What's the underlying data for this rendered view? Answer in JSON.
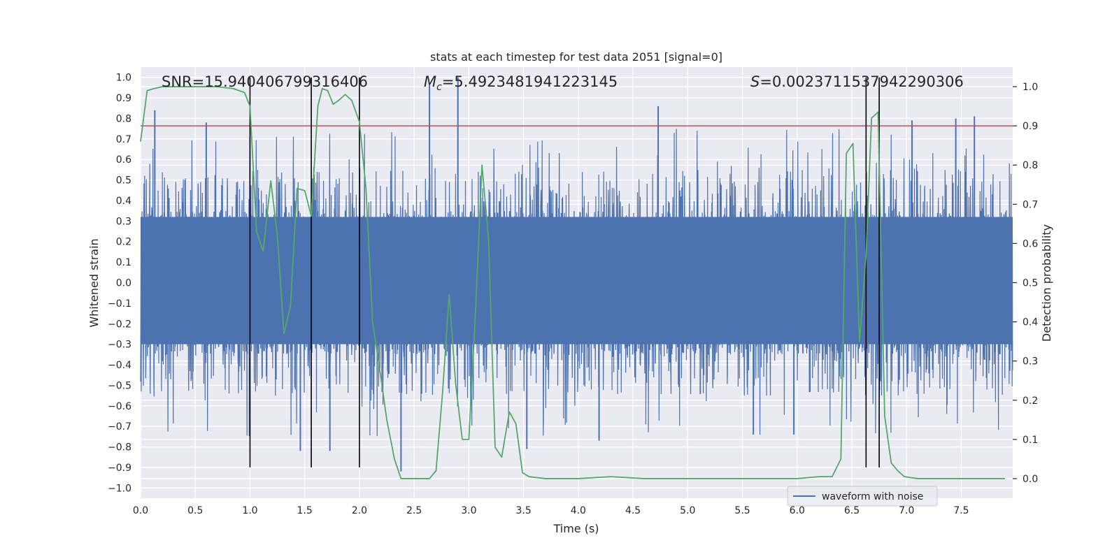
{
  "chart_data": {
    "type": "line",
    "title": "stats at each timestep for test data 2051 [signal=0]",
    "xlabel": "Time (s)",
    "ylabel": "Whitened strain",
    "ylabel_right": "Detection probability",
    "xlim": [
      0.0,
      7.97
    ],
    "ylim": [
      -1.05,
      1.05
    ],
    "ylim_right": [
      -0.05,
      1.05
    ],
    "x_ticks": [
      "0.0",
      "0.5",
      "1.0",
      "1.5",
      "2.0",
      "2.5",
      "3.0",
      "3.5",
      "4.0",
      "4.5",
      "5.0",
      "5.5",
      "6.0",
      "6.5",
      "7.0",
      "7.5"
    ],
    "y_ticks": [
      "1.0",
      "0.9",
      "0.8",
      "0.7",
      "0.6",
      "0.5",
      "0.4",
      "0.3",
      "0.2",
      "0.1",
      "0.0",
      "-0.1",
      "-0.2",
      "-0.3",
      "-0.4",
      "-0.5",
      "-0.6",
      "-0.7",
      "-0.8",
      "-0.9",
      "-1.0"
    ],
    "y_ticks_right": [
      "1.0",
      "0.9",
      "0.8",
      "0.7",
      "0.6",
      "0.5",
      "0.4",
      "0.3",
      "0.2",
      "0.1",
      "0.0"
    ],
    "annotations": {
      "snr": "SNR=15.940406799316406",
      "mc_symbol": "M",
      "mc_sub": "c",
      "mc_value": "=5.4923481941223145",
      "s_symbol": "S",
      "s_value": "=0.0023711537942290306"
    },
    "legend": {
      "label": "waveform with noise",
      "position": "lower-right"
    },
    "threshold": {
      "value": 0.9,
      "axis": "right",
      "color": "#c44e52"
    },
    "vlines": [
      1.0,
      1.56,
      2.0,
      6.63,
      6.75
    ],
    "waveform": {
      "name": "waveform with noise",
      "color": "#4c72b0",
      "sample_rate_hz": 512,
      "envelope_upper": 0.32,
      "envelope_lower": -0.3,
      "spikes": [
        {
          "t": 0.13,
          "v": 0.84
        },
        {
          "t": 0.6,
          "v": 0.78
        },
        {
          "t": 2.64,
          "v": 0.97
        },
        {
          "t": 2.9,
          "v": 1.0
        },
        {
          "t": 4.73,
          "v": 0.86
        },
        {
          "t": 7.05,
          "v": 0.79
        },
        {
          "t": 7.45,
          "v": 0.8
        },
        {
          "t": 7.62,
          "v": 0.81
        },
        {
          "t": 1.46,
          "v": -0.82
        },
        {
          "t": 1.73,
          "v": -0.82
        },
        {
          "t": 2.38,
          "v": -0.92
        },
        {
          "t": 3.53,
          "v": -0.81
        },
        {
          "t": 4.19,
          "v": -0.77
        },
        {
          "t": 5.6,
          "v": -0.74
        },
        {
          "t": 5.97,
          "v": -0.74
        }
      ]
    },
    "probability": {
      "name": "Detection probability",
      "color": "#55a868",
      "x": [
        0.0,
        0.06,
        0.12,
        0.2,
        0.3,
        0.5,
        0.7,
        0.85,
        0.95,
        1.0,
        1.06,
        1.12,
        1.19,
        1.25,
        1.31,
        1.37,
        1.43,
        1.5,
        1.56,
        1.62,
        1.66,
        1.71,
        1.76,
        1.81,
        1.87,
        1.93,
        2.0,
        2.06,
        2.12,
        2.2,
        2.25,
        2.32,
        2.38,
        2.44,
        2.5,
        2.64,
        2.7,
        2.76,
        2.82,
        2.88,
        2.94,
        3.0,
        3.06,
        3.12,
        3.18,
        3.24,
        3.3,
        3.37,
        3.43,
        3.49,
        3.55,
        3.7,
        4.0,
        4.3,
        4.6,
        4.9,
        5.2,
        5.6,
        6.0,
        6.2,
        6.32,
        6.4,
        6.45,
        6.51,
        6.57,
        6.63,
        6.68,
        6.74,
        6.8,
        6.86,
        6.92,
        6.98,
        7.1,
        7.3,
        7.6,
        7.9
      ],
      "y": [
        0.86,
        0.99,
        0.995,
        1.0,
        1.0,
        1.0,
        1.0,
        0.995,
        0.985,
        0.95,
        0.63,
        0.58,
        0.76,
        0.62,
        0.37,
        0.44,
        0.74,
        0.735,
        0.67,
        0.95,
        0.995,
        0.99,
        0.955,
        0.965,
        0.98,
        0.965,
        0.91,
        0.74,
        0.4,
        0.25,
        0.15,
        0.05,
        0.0,
        0.0,
        0.0,
        0.0,
        0.02,
        0.22,
        0.47,
        0.24,
        0.1,
        0.1,
        0.42,
        0.8,
        0.61,
        0.08,
        0.055,
        0.17,
        0.14,
        0.015,
        0.005,
        0.0,
        0.0,
        0.005,
        0.0,
        0.0,
        0.0,
        0.0,
        0.0,
        0.005,
        0.005,
        0.05,
        0.83,
        0.855,
        0.35,
        0.57,
        0.92,
        0.935,
        0.16,
        0.04,
        0.02,
        0.005,
        0.0,
        0.0,
        0.0,
        0.0
      ]
    }
  }
}
